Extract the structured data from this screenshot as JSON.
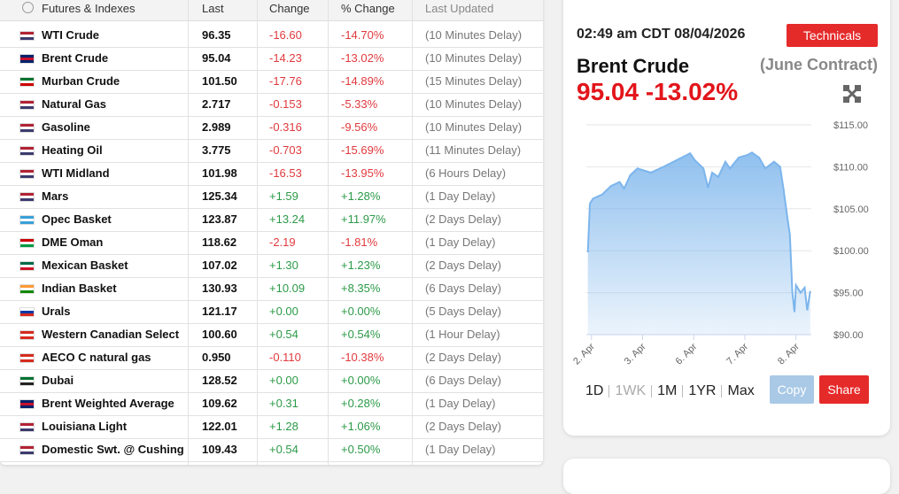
{
  "table": {
    "headers": [
      "Futures & Indexes",
      "Last",
      "Change",
      "% Change",
      "Last Updated"
    ],
    "rows": [
      [
        "WTI Crude",
        "96.35",
        "-16.60",
        "-14.70%",
        "(10 Minutes Delay)"
      ],
      [
        "Brent Crude",
        "95.04",
        "-14.23",
        "-13.02%",
        "(10 Minutes Delay)"
      ],
      [
        "Murban Crude",
        "101.50",
        "-17.76",
        "-14.89%",
        "(15 Minutes Delay)"
      ],
      [
        "Natural Gas",
        "2.717",
        "-0.153",
        "-5.33%",
        "(10 Minutes Delay)"
      ],
      [
        "Gasoline",
        "2.989",
        "-0.316",
        "-9.56%",
        "(10 Minutes Delay)"
      ],
      [
        "Heating Oil",
        "3.775",
        "-0.703",
        "-15.69%",
        "(11 Minutes Delay)"
      ],
      [
        "WTI Midland",
        "101.98",
        "-16.53",
        "-13.95%",
        "(6 Hours Delay)"
      ],
      [
        "Mars",
        "125.34",
        "+1.59",
        "+1.28%",
        "(1 Day Delay)"
      ],
      [
        "Opec Basket",
        "123.87",
        "+13.24",
        "+11.97%",
        "(2 Days Delay)"
      ],
      [
        "DME Oman",
        "118.62",
        "-2.19",
        "-1.81%",
        "(1 Day Delay)"
      ],
      [
        "Mexican Basket",
        "107.02",
        "+1.30",
        "+1.23%",
        "(2 Days Delay)"
      ],
      [
        "Indian Basket",
        "130.93",
        "+10.09",
        "+8.35%",
        "(6 Days Delay)"
      ],
      [
        "Urals",
        "121.17",
        "+0.00",
        "+0.00%",
        "(5 Days Delay)"
      ],
      [
        "Western Canadian Select",
        "100.60",
        "+0.54",
        "+0.54%",
        "(1 Hour Delay)"
      ],
      [
        "AECO C natural gas",
        "0.950",
        "-0.110",
        "-10.38%",
        "(2 Days Delay)"
      ],
      [
        "Dubai",
        "128.52",
        "+0.00",
        "+0.00%",
        "(6 Days Delay)"
      ],
      [
        "Brent Weighted Average",
        "109.62",
        "+0.31",
        "+0.28%",
        "(1 Day Delay)"
      ],
      [
        "Louisiana Light",
        "122.01",
        "+1.28",
        "+1.06%",
        "(2 Days Delay)"
      ],
      [
        "Domestic Swt. @ Cushing",
        "109.43",
        "+0.54",
        "+0.50%",
        "(1 Day Delay)"
      ]
    ]
  },
  "panel": {
    "time": "02:49 am CDT 08/04/2026",
    "technicals": "Technicals",
    "name": "Brent Crude",
    "contract": "(June Contract)",
    "price": "95.04",
    "change": "-13.02%",
    "ranges": [
      "1D",
      "1WK",
      "1M",
      "1YR",
      "Max"
    ],
    "copy": "Copy",
    "share": "Share"
  },
  "chart_data": {
    "type": "area",
    "color": "#7cb5ec",
    "x": [
      -0.07,
      -0.03,
      0.03,
      0.21,
      0.38,
      0.55,
      0.64,
      0.76,
      0.9,
      1.16,
      1.41,
      1.67,
      1.93,
      2.02,
      2.19,
      2.28,
      2.36,
      2.48,
      2.62,
      2.71,
      2.88,
      3.05,
      3.14,
      3.28,
      3.4,
      3.57,
      3.69,
      3.76,
      3.83,
      3.88,
      3.93,
      3.97,
      4.0,
      4.09,
      4.17,
      4.22,
      4.28
    ],
    "values": [
      99.8,
      105.6,
      106.2,
      106.7,
      107.7,
      108.2,
      107.4,
      109,
      109.8,
      109.3,
      110,
      110.8,
      111.6,
      110.8,
      109.8,
      107.5,
      109.3,
      108.8,
      110.6,
      109.8,
      111.1,
      111.4,
      111.7,
      111.1,
      109.8,
      110.6,
      110,
      107.2,
      104,
      101.9,
      95,
      92.7,
      95.9,
      95,
      95.6,
      92.9,
      95.2
    ],
    "xlim": [
      -0.1,
      4.3
    ],
    "xticks": [
      {
        "value": 0,
        "label": "2. Apr"
      },
      {
        "value": 1,
        "label": "3. Apr"
      },
      {
        "value": 2,
        "label": "6. Apr"
      },
      {
        "value": 3,
        "label": "7. Apr"
      },
      {
        "value": 4,
        "label": "8. Apr"
      }
    ],
    "ylim": [
      90,
      115
    ],
    "yticks": [
      {
        "value": 90,
        "label": "$90.00"
      },
      {
        "value": 95,
        "label": "$95.00"
      },
      {
        "value": 100,
        "label": "$100.00"
      },
      {
        "value": 105,
        "label": "$105.00"
      },
      {
        "value": 110,
        "label": "$110.00"
      },
      {
        "value": 115,
        "label": "$115.00"
      }
    ],
    "grid": true
  }
}
